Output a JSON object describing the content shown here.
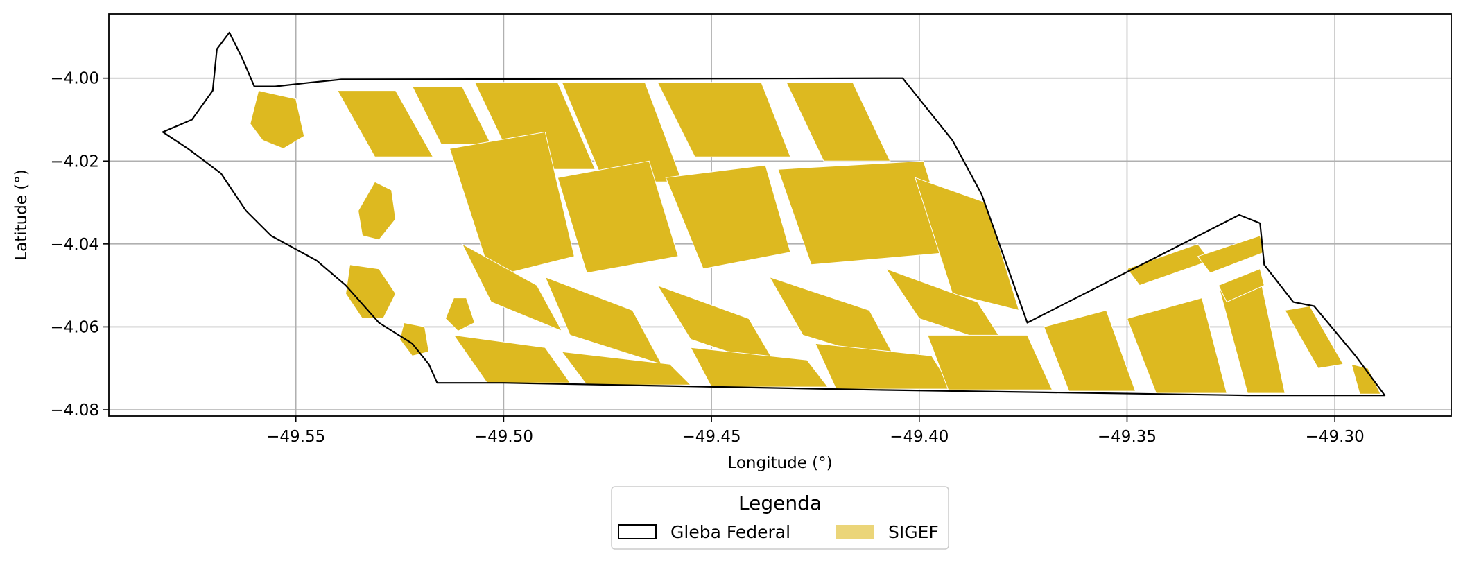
{
  "chart_data": {
    "type": "map",
    "xlabel": "Longitude (°)",
    "ylabel": "Latitude (°)",
    "xlim": [
      -49.595,
      -49.272
    ],
    "ylim": [
      -4.0815,
      -3.9845
    ],
    "xticks": [
      -49.55,
      -49.5,
      -49.45,
      -49.4,
      -49.35,
      -49.3
    ],
    "xtick_labels": [
      "−49.55",
      "−49.50",
      "−49.45",
      "−49.40",
      "−49.35",
      "−49.30"
    ],
    "yticks": [
      -4.0,
      -4.02,
      -4.04,
      -4.06,
      -4.08
    ],
    "ytick_labels": [
      "−4.00",
      "−4.02",
      "−4.04",
      "−4.06",
      "−4.08"
    ],
    "grid": true,
    "legend": {
      "title": "Legenda",
      "placement": "bottom-center",
      "entries": [
        {
          "label": "Gleba Federal",
          "style": "outline",
          "color": "#000000"
        },
        {
          "label": "SIGEF",
          "style": "fill",
          "color": "#DDB920"
        }
      ]
    },
    "layers": [
      {
        "name": "Gleba Federal",
        "outline": [
          [
            -49.539,
            -4.0003
          ],
          [
            -49.404,
            -4.0
          ],
          [
            -49.392,
            -4.015
          ],
          [
            -49.385,
            -4.028
          ],
          [
            -49.374,
            -4.059
          ],
          [
            -49.323,
            -4.033
          ],
          [
            -49.318,
            -4.035
          ],
          [
            -49.317,
            -4.045
          ],
          [
            -49.31,
            -4.054
          ],
          [
            -49.305,
            -4.055
          ],
          [
            -49.295,
            -4.067
          ],
          [
            -49.288,
            -4.0765
          ],
          [
            -49.321,
            -4.0765
          ],
          [
            -49.41,
            -4.0752
          ],
          [
            -49.5,
            -4.0735
          ],
          [
            -49.516,
            -4.0735
          ],
          [
            -49.518,
            -4.069
          ],
          [
            -49.522,
            -4.064
          ],
          [
            -49.53,
            -4.059
          ],
          [
            -49.538,
            -4.05
          ],
          [
            -49.545,
            -4.044
          ],
          [
            -49.556,
            -4.038
          ],
          [
            -49.562,
            -4.032
          ],
          [
            -49.568,
            -4.023
          ],
          [
            -49.576,
            -4.017
          ],
          [
            -49.582,
            -4.013
          ],
          [
            -49.575,
            -4.01
          ],
          [
            -49.57,
            -4.003
          ],
          [
            -49.569,
            -3.993
          ],
          [
            -49.566,
            -3.989
          ],
          [
            -49.563,
            -3.995
          ],
          [
            -49.56,
            -4.002
          ],
          [
            -49.555,
            -4.002
          ],
          [
            -49.546,
            -4.001
          ]
        ]
      },
      {
        "name": "SIGEF",
        "color": "#DDB920",
        "parcels": [
          [
            [
              -49.507,
              -4.001
            ],
            [
              -49.487,
              -4.001
            ],
            [
              -49.478,
              -4.022
            ],
            [
              -49.497,
              -4.022
            ]
          ],
          [
            [
              -49.486,
              -4.001
            ],
            [
              -49.466,
              -4.001
            ],
            [
              -49.457,
              -4.025
            ],
            [
              -49.476,
              -4.025
            ]
          ],
          [
            [
              -49.463,
              -4.001
            ],
            [
              -49.438,
              -4.001
            ],
            [
              -49.431,
              -4.019
            ],
            [
              -49.454,
              -4.019
            ]
          ],
          [
            [
              -49.432,
              -4.001
            ],
            [
              -49.416,
              -4.001
            ],
            [
              -49.407,
              -4.02
            ],
            [
              -49.423,
              -4.02
            ]
          ],
          [
            [
              -49.54,
              -4.003
            ],
            [
              -49.526,
              -4.003
            ],
            [
              -49.517,
              -4.019
            ],
            [
              -49.531,
              -4.019
            ]
          ],
          [
            [
              -49.522,
              -4.002
            ],
            [
              -49.51,
              -4.002
            ],
            [
              -49.503,
              -4.016
            ],
            [
              -49.515,
              -4.016
            ]
          ],
          [
            [
              -49.513,
              -4.017
            ],
            [
              -49.49,
              -4.013
            ],
            [
              -49.483,
              -4.043
            ],
            [
              -49.503,
              -4.048
            ]
          ],
          [
            [
              -49.487,
              -4.024
            ],
            [
              -49.465,
              -4.02
            ],
            [
              -49.458,
              -4.043
            ],
            [
              -49.48,
              -4.047
            ]
          ],
          [
            [
              -49.461,
              -4.024
            ],
            [
              -49.437,
              -4.021
            ],
            [
              -49.431,
              -4.042
            ],
            [
              -49.452,
              -4.046
            ]
          ],
          [
            [
              -49.434,
              -4.022
            ],
            [
              -49.399,
              -4.02
            ],
            [
              -49.392,
              -4.042
            ],
            [
              -49.426,
              -4.045
            ]
          ],
          [
            [
              -49.401,
              -4.024
            ],
            [
              -49.384,
              -4.03
            ],
            [
              -49.376,
              -4.056
            ],
            [
              -49.392,
              -4.052
            ]
          ],
          [
            [
              -49.51,
              -4.04
            ],
            [
              -49.492,
              -4.05
            ],
            [
              -49.486,
              -4.061
            ],
            [
              -49.503,
              -4.054
            ]
          ],
          [
            [
              -49.49,
              -4.048
            ],
            [
              -49.469,
              -4.056
            ],
            [
              -49.462,
              -4.069
            ],
            [
              -49.484,
              -4.062
            ]
          ],
          [
            [
              -49.463,
              -4.05
            ],
            [
              -49.441,
              -4.058
            ],
            [
              -49.434,
              -4.07
            ],
            [
              -49.455,
              -4.063
            ]
          ],
          [
            [
              -49.436,
              -4.048
            ],
            [
              -49.412,
              -4.056
            ],
            [
              -49.405,
              -4.069
            ],
            [
              -49.428,
              -4.062
            ]
          ],
          [
            [
              -49.408,
              -4.046
            ],
            [
              -49.386,
              -4.054
            ],
            [
              -49.379,
              -4.065
            ],
            [
              -49.4,
              -4.058
            ]
          ],
          [
            [
              -49.512,
              -4.062
            ],
            [
              -49.49,
              -4.065
            ],
            [
              -49.484,
              -4.0735
            ],
            [
              -49.504,
              -4.0735
            ]
          ],
          [
            [
              -49.486,
              -4.066
            ],
            [
              -49.46,
              -4.069
            ],
            [
              -49.455,
              -4.074
            ],
            [
              -49.48,
              -4.074
            ]
          ],
          [
            [
              -49.455,
              -4.065
            ],
            [
              -49.427,
              -4.068
            ],
            [
              -49.422,
              -4.0745
            ],
            [
              -49.45,
              -4.0745
            ]
          ],
          [
            [
              -49.425,
              -4.064
            ],
            [
              -49.397,
              -4.067
            ],
            [
              -49.392,
              -4.075
            ],
            [
              -49.42,
              -4.075
            ]
          ],
          [
            [
              -49.398,
              -4.062
            ],
            [
              -49.374,
              -4.062
            ],
            [
              -49.368,
              -4.0752
            ],
            [
              -49.393,
              -4.0752
            ]
          ],
          [
            [
              -49.37,
              -4.06
            ],
            [
              -49.355,
              -4.056
            ],
            [
              -49.348,
              -4.0755
            ],
            [
              -49.364,
              -4.0755
            ]
          ],
          [
            [
              -49.35,
              -4.058
            ],
            [
              -49.332,
              -4.053
            ],
            [
              -49.326,
              -4.076
            ],
            [
              -49.343,
              -4.076
            ]
          ],
          [
            [
              -49.328,
              -4.05
            ],
            [
              -49.318,
              -4.048
            ],
            [
              -49.312,
              -4.076
            ],
            [
              -49.321,
              -4.076
            ]
          ],
          [
            [
              -49.35,
              -4.046
            ],
            [
              -49.333,
              -4.04
            ],
            [
              -49.33,
              -4.044
            ],
            [
              -49.347,
              -4.05
            ]
          ],
          [
            [
              -49.333,
              -4.043
            ],
            [
              -49.318,
              -4.038
            ],
            [
              -49.317,
              -4.042
            ],
            [
              -49.33,
              -4.047
            ]
          ],
          [
            [
              -49.328,
              -4.05
            ],
            [
              -49.318,
              -4.046
            ],
            [
              -49.317,
              -4.05
            ],
            [
              -49.326,
              -4.054
            ]
          ],
          [
            [
              -49.312,
              -4.056
            ],
            [
              -49.306,
              -4.055
            ],
            [
              -49.298,
              -4.069
            ],
            [
              -49.304,
              -4.07
            ]
          ],
          [
            [
              -49.296,
              -4.069
            ],
            [
              -49.292,
              -4.07
            ],
            [
              -49.289,
              -4.0762
            ],
            [
              -49.294,
              -4.0762
            ]
          ],
          [
            [
              -49.559,
              -4.003
            ],
            [
              -49.55,
              -4.005
            ],
            [
              -49.548,
              -4.014
            ],
            [
              -49.553,
              -4.017
            ],
            [
              -49.558,
              -4.015
            ],
            [
              -49.561,
              -4.011
            ]
          ],
          [
            [
              -49.531,
              -4.025
            ],
            [
              -49.527,
              -4.027
            ],
            [
              -49.526,
              -4.034
            ],
            [
              -49.53,
              -4.039
            ],
            [
              -49.534,
              -4.038
            ],
            [
              -49.535,
              -4.032
            ]
          ],
          [
            [
              -49.537,
              -4.045
            ],
            [
              -49.53,
              -4.046
            ],
            [
              -49.526,
              -4.052
            ],
            [
              -49.529,
              -4.058
            ],
            [
              -49.534,
              -4.058
            ],
            [
              -49.538,
              -4.052
            ]
          ],
          [
            [
              -49.524,
              -4.059
            ],
            [
              -49.519,
              -4.06
            ],
            [
              -49.518,
              -4.066
            ],
            [
              -49.522,
              -4.067
            ],
            [
              -49.525,
              -4.063
            ]
          ],
          [
            [
              -49.512,
              -4.053
            ],
            [
              -49.509,
              -4.053
            ],
            [
              -49.507,
              -4.059
            ],
            [
              -49.511,
              -4.061
            ],
            [
              -49.514,
              -4.058
            ]
          ]
        ]
      }
    ]
  }
}
